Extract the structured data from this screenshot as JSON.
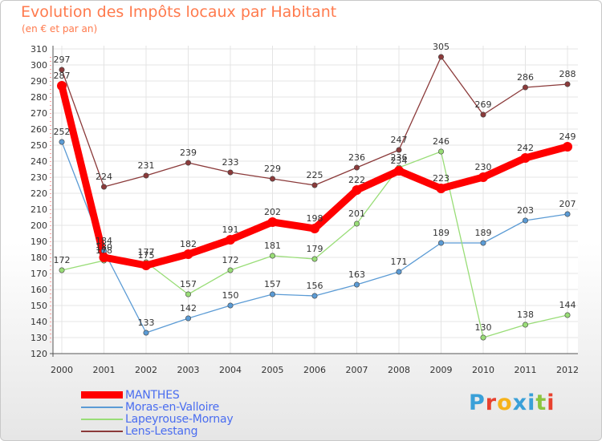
{
  "title": "Evolution des Impôts locaux par Habitant",
  "subtitle": "(en € et par an)",
  "logo_text": "Proxiti",
  "logo_colors": [
    "#3aa0d8",
    "#e8412e",
    "#f6b21a",
    "#3aa0d8",
    "#3aa0d8",
    "#8bc53f",
    "#e8412e"
  ],
  "chart_data": {
    "type": "line",
    "title": "Evolution des Impôts locaux par Habitant",
    "subtitle": "(en € et par an)",
    "xlabel": "",
    "ylabel": "",
    "x": [
      "2000",
      "2001",
      "2002",
      "2003",
      "2004",
      "2005",
      "2006",
      "2007",
      "2008",
      "2009",
      "2010",
      "2011",
      "2012"
    ],
    "ylim": [
      120,
      310
    ],
    "yticks": [
      120,
      130,
      140,
      150,
      160,
      170,
      180,
      190,
      200,
      210,
      220,
      230,
      240,
      250,
      260,
      270,
      280,
      290,
      300,
      310
    ],
    "grid": true,
    "legend_position": "bottom-left",
    "series": [
      {
        "name": "MANTHES",
        "color": "#ff0000",
        "emphasis": true,
        "values": [
          287,
          180,
          175,
          182,
          191,
          202,
          198,
          222,
          234,
          223,
          230,
          242,
          249
        ],
        "labels": [
          "287",
          "180",
          "175",
          "182",
          "191",
          "202",
          "198",
          "222",
          "234",
          "223",
          "230",
          "242",
          "249"
        ]
      },
      {
        "name": "Moras-en-Valloire",
        "color": "#5b9bd5",
        "emphasis": false,
        "values": [
          252,
          184,
          133,
          142,
          150,
          157,
          156,
          163,
          171,
          189,
          189,
          203,
          207
        ],
        "labels": [
          "252",
          "184",
          "133",
          "142",
          "150",
          "157",
          "156",
          "163",
          "171",
          "189",
          "189",
          "203",
          "207"
        ]
      },
      {
        "name": "Lapeyrouse-Mornay",
        "color": "#99dd77",
        "emphasis": false,
        "values": [
          172,
          178,
          177,
          157,
          172,
          181,
          179,
          201,
          236,
          246,
          130,
          138,
          144
        ],
        "labels": [
          "172",
          "178",
          "177",
          "157",
          "172",
          "181",
          "179",
          "201",
          "236",
          "246",
          "130",
          "138",
          "144"
        ]
      },
      {
        "name": "Lens-Lestang",
        "color": "#8b3a3a",
        "emphasis": false,
        "values": [
          297,
          224,
          231,
          239,
          233,
          229,
          225,
          236,
          247,
          305,
          269,
          286,
          288
        ],
        "labels": [
          "297",
          "224",
          "231",
          "239",
          "233",
          "229",
          "225",
          "236",
          "247",
          "305",
          "269",
          "286",
          "288"
        ]
      }
    ]
  }
}
